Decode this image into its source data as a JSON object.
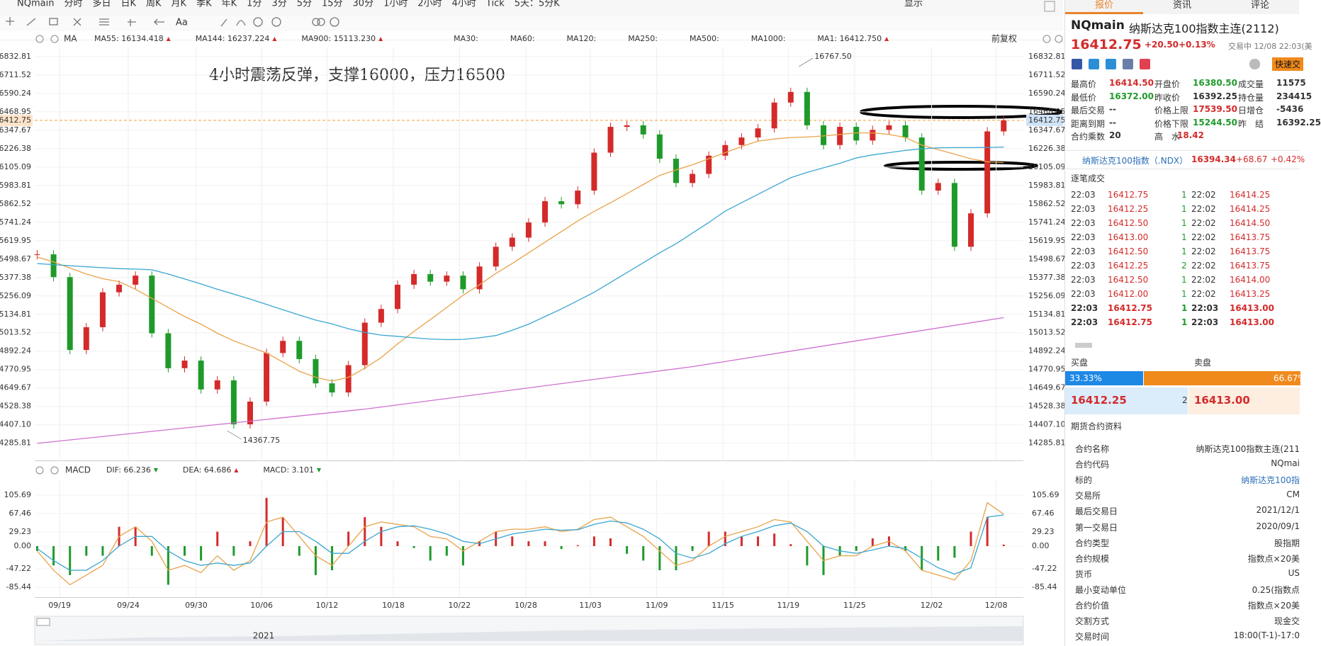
{
  "toolbar": {
    "items": [
      "NQmain",
      "分时",
      "多日",
      "日K",
      "周K",
      "月K",
      "季K",
      "年K",
      "1分",
      "3分",
      "5分",
      "15分",
      "30分",
      "1小时",
      "2小时",
      "4小时",
      "Tick",
      "5天：5分K"
    ],
    "active_index": 15,
    "right_label": "显示"
  },
  "chart": {
    "type": "candlestick",
    "ma_label": "MA",
    "ma_legend": [
      {
        "text": "MA55: 16134.418",
        "color": "#e8a34a",
        "arrow": true
      },
      {
        "text": "MA144: 16237.224",
        "color": "#3aa6d0",
        "arrow": true
      },
      {
        "text": "MA900: 15113.230",
        "color": "#d070d0",
        "arrow": true
      },
      {
        "text": "MA30:",
        "color": "#b7d8f2",
        "arrow": false
      },
      {
        "text": "MA60:",
        "color": "#b7d8f2",
        "arrow": false
      },
      {
        "text": "MA120:",
        "color": "#f2c0c8",
        "arrow": false
      },
      {
        "text": "MA250:",
        "color": "#b7e0ee",
        "arrow": false
      },
      {
        "text": "MA500:",
        "color": "#f2dcb0",
        "arrow": false
      },
      {
        "text": "MA1000:",
        "color": "#b8c8e8",
        "arrow": false
      },
      {
        "text": "MA1: 16412.750",
        "color": "#555555",
        "arrow": true
      }
    ],
    "adjust_label": "前复权",
    "note": "4小时震荡反弹，支撑16000，压力16500",
    "up_color": "#d42a2a",
    "down_color": "#1f9a2a",
    "close": [
      15530,
      15380,
      14900,
      15050,
      15280,
      15330,
      15390,
      15010,
      14780,
      14830,
      14640,
      14700,
      14410,
      14560,
      14880,
      14960,
      14840,
      14680,
      14620,
      14800,
      15080,
      15170,
      15330,
      15400,
      15350,
      15390,
      15300,
      15450,
      15580,
      15640,
      15740,
      15880,
      15860,
      15950,
      16200,
      16370,
      16380,
      16320,
      16160,
      16000,
      16060,
      16180,
      16250,
      16300,
      16360,
      16530,
      16600,
      16380,
      16250,
      16370,
      16280,
      16350,
      16380,
      16300,
      15950,
      16000,
      15580,
      15800,
      16340,
      16412.75
    ],
    "lines": [
      {
        "color": "#e8a34a",
        "values": [
          15513,
          15480,
          15440,
          15400,
          15370,
          15350,
          15300,
          15240,
          15180,
          15120,
          15070,
          15010,
          14960,
          14920,
          14880,
          14820,
          14760,
          14720,
          14695,
          14720,
          14780,
          14850,
          14940,
          15022,
          15100,
          15180,
          15260,
          15330,
          15404,
          15470,
          15540,
          15610,
          15680,
          15750,
          15813,
          15870,
          15930,
          15990,
          16050,
          16086,
          16120,
          16160,
          16200,
          16240,
          16276,
          16290,
          16300,
          16303,
          16310,
          16320,
          16330,
          16330,
          16320,
          16300,
          16250,
          16220,
          16190,
          16160,
          16140,
          16134
        ]
      },
      {
        "color": "#3aa6d0",
        "values": [
          15469,
          15462,
          15455,
          15448,
          15442,
          15436,
          15433,
          15428,
          15400,
          15368,
          15335,
          15300,
          15268,
          15235,
          15200,
          15165,
          15130,
          15097,
          15072,
          15040,
          15015,
          14998,
          14990,
          14980,
          14972,
          14968,
          14970,
          14980,
          14995,
          15030,
          15070,
          15120,
          15170,
          15225,
          15280,
          15345,
          15410,
          15475,
          15540,
          15600,
          15670,
          15740,
          15815,
          15870,
          15925,
          15980,
          16035,
          16070,
          16100,
          16130,
          16165,
          16185,
          16200,
          16215,
          16225,
          16232,
          16233,
          16233,
          16234,
          16237
        ]
      },
      {
        "color": "#d070d0",
        "x": [
          0,
          20,
          40,
          59
        ],
        "values": [
          14285,
          14510,
          14790,
          15113
        ]
      }
    ],
    "annotations": [
      {
        "label": "16767.50",
        "x": 46.5,
        "value": 16767.5
      },
      {
        "label": "14367.75",
        "x": 11.6,
        "value": 14367.75
      }
    ],
    "last_price": 16412.75,
    "last_color": "#f0a030",
    "xlim": [
      -0.15,
      60.2
    ],
    "xticks": [
      {
        "value": 1.37,
        "label": "09/19"
      },
      {
        "value": 5.56,
        "label": "09/24"
      },
      {
        "value": 9.71,
        "label": "09/30"
      },
      {
        "value": 13.7,
        "label": "10/06"
      },
      {
        "value": 17.69,
        "label": "10/12"
      },
      {
        "value": 21.74,
        "label": "10/18"
      },
      {
        "value": 25.78,
        "label": "10/22"
      },
      {
        "value": 29.83,
        "label": "10/28"
      },
      {
        "value": 33.77,
        "label": "11/03"
      },
      {
        "value": 37.82,
        "label": "11/09"
      },
      {
        "value": 41.86,
        "label": "11/15"
      },
      {
        "value": 45.85,
        "label": "11/19"
      },
      {
        "value": 49.9,
        "label": "11/25"
      },
      {
        "value": 54.6,
        "label": "12/02"
      },
      {
        "value": 58.54,
        "label": "12/08"
      }
    ],
    "ylim": [
      14177,
      16893
    ],
    "yticks": [
      16832.81,
      16711.52,
      16590.24,
      16468.95,
      16347.67,
      16226.38,
      16105.09,
      15983.81,
      15862.52,
      15741.24,
      15619.95,
      15498.67,
      15377.38,
      15256.09,
      15134.81,
      15013.52,
      14892.24,
      14770.95,
      14649.67,
      14528.38,
      {
        "value": 14407.1,
        "label": "14407.10"
      },
      14285.81
    ],
    "grid": true,
    "macd": {
      "label": "MACD",
      "legend": [
        {
          "text": "DIF: 66.236",
          "color": "#e8a34a"
        },
        {
          "text": "DEA: 64.686",
          "color": "#3aa6d0"
        },
        {
          "text": "MACD: 3.101",
          "color": "#d070d0"
        }
      ],
      "dif": [
        -10,
        -50,
        -80,
        -60,
        -40,
        20,
        40,
        10,
        -50,
        -40,
        -55,
        -20,
        -50,
        -30,
        50,
        60,
        20,
        -20,
        -40,
        0,
        40,
        50,
        45,
        40,
        20,
        15,
        -10,
        10,
        30,
        35,
        35,
        40,
        30,
        35,
        55,
        60,
        40,
        20,
        -10,
        -40,
        -30,
        0,
        20,
        30,
        40,
        55,
        50,
        10,
        -30,
        -20,
        -20,
        0,
        10,
        -10,
        -50,
        -60,
        -70,
        -30,
        90,
        66.236
      ],
      "dea": [
        -5,
        -30,
        -50,
        -50,
        -30,
        0,
        20,
        20,
        -10,
        -30,
        -40,
        -35,
        -40,
        -35,
        0,
        30,
        30,
        10,
        -15,
        -15,
        10,
        30,
        40,
        42,
        35,
        25,
        10,
        5,
        15,
        25,
        30,
        35,
        33,
        34,
        45,
        52,
        48,
        35,
        15,
        -15,
        -25,
        -15,
        5,
        20,
        30,
        42,
        48,
        30,
        0,
        -10,
        -15,
        -8,
        0,
        -5,
        -25,
        -45,
        -58,
        -45,
        60,
        64.686
      ],
      "hist": [
        -10,
        -40,
        -60,
        -20,
        -20,
        40,
        40,
        -20,
        -80,
        -20,
        -30,
        30,
        -20,
        10,
        100,
        60,
        -20,
        -60,
        -50,
        30,
        60,
        40,
        10,
        -4,
        -30,
        -20,
        -40,
        10,
        30,
        20,
        10,
        10,
        -6,
        2,
        20,
        16,
        -16,
        -30,
        -50,
        -50,
        -10,
        30,
        30,
        20,
        20,
        26,
        4,
        -40,
        -60,
        -20,
        -10,
        16,
        20,
        -10,
        -50,
        -30,
        -24,
        30,
        60,
        3.101
      ],
      "ylim": [
        -104.2,
        136.4
      ],
      "yticks": [
        105.69,
        67.46,
        29.23,
        {
          "value": 0,
          "label": "0.00"
        },
        -47.22,
        -85.44
      ]
    },
    "navigator_label": "2021"
  },
  "panel": {
    "tabs": [
      "报价",
      "资讯",
      "评论"
    ],
    "symbol": "NQmain",
    "name": "纳斯达克100指数主连(2112)",
    "price": "16412.75",
    "change": "+20.50",
    "pct": "+0.13%",
    "status": "交易中 12/08 22:03(美",
    "quick_btn": "快速交",
    "stats": [
      [
        "最高价",
        "16414.50",
        "开盘价",
        "16380.50",
        "成交量",
        "11575"
      ],
      [
        "最低价",
        "16372.00",
        "昨收价",
        "16392.25",
        "持仓量",
        "234415"
      ],
      [
        "最后交易",
        "--",
        "价格上限",
        "17539.50",
        "日增仓",
        "-5436"
      ],
      [
        "距离到期",
        "--",
        "价格下限",
        "15244.50",
        "昨　结",
        "16392.25"
      ],
      [
        "合约乘数",
        "20",
        "高　水",
        "18.42"
      ]
    ],
    "index": {
      "name": "纳斯达克100指数（.NDX）",
      "price": "16394.34",
      "change": "+68.67",
      "pct": "+0.42%"
    },
    "trades_title": "逐笔成交",
    "trades": [
      [
        "22:03",
        "16412.75",
        "1",
        "22:02",
        "16414.25"
      ],
      [
        "22:03",
        "16412.25",
        "1",
        "22:02",
        "16414.25"
      ],
      [
        "22:03",
        "16412.50",
        "1",
        "22:02",
        "16414.50"
      ],
      [
        "22:03",
        "16413.00",
        "1",
        "22:02",
        "16413.75"
      ],
      [
        "22:03",
        "16412.50",
        "1",
        "22:02",
        "16413.75"
      ],
      [
        "22:03",
        "16412.25",
        "2",
        "22:02",
        "16413.75"
      ],
      [
        "22:03",
        "16412.50",
        "1",
        "22:02",
        "16414.00"
      ],
      [
        "22:03",
        "16412.00",
        "1",
        "22:02",
        "16413.25"
      ],
      [
        "22:03",
        "16412.75",
        "1",
        "22:03",
        "16413.00"
      ],
      [
        "22:03",
        "16412.75",
        "1",
        "22:03",
        "16413.00"
      ]
    ],
    "bid_label": "买盘",
    "ask_label": "卖盘",
    "bid_pct": "33.33%",
    "ask_pct": "66.67%",
    "bid": "16412.25",
    "depth": "2",
    "ask": "16413.00",
    "info_title": "期货合约资料",
    "info": [
      [
        "合约名称",
        "纳斯达克100指数主连(211"
      ],
      [
        "合约代码",
        "NQmai"
      ],
      [
        "标的",
        "纳斯达克100指"
      ],
      [
        "交易所",
        "CM"
      ],
      [
        "最后交易日",
        "2021/12/1"
      ],
      [
        "第一交易日",
        "2020/09/1"
      ],
      [
        "合约类型",
        "股指期"
      ],
      [
        "合约规模",
        "指数点×20美"
      ],
      [
        "货币",
        "US"
      ],
      [
        "最小变动单位",
        "0.25(指数点"
      ],
      [
        "合约价值",
        "指数点×20美"
      ],
      [
        "交割方式",
        "现金交"
      ],
      [
        "交易时间",
        "18:00(T-1)-17:0"
      ]
    ]
  }
}
